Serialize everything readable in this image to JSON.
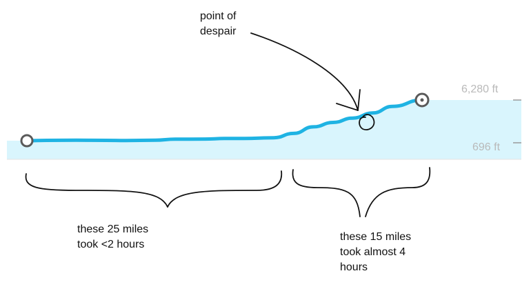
{
  "chart_data": {
    "type": "area",
    "title": "",
    "xlabel": "",
    "ylabel": "",
    "x_unit": "miles",
    "y_unit": "ft",
    "x": [
      0,
      2,
      5,
      8,
      10,
      13,
      15,
      18,
      20,
      22,
      25,
      27,
      29,
      31,
      33,
      35,
      37,
      40
    ],
    "values": [
      696,
      740,
      760,
      745,
      720,
      760,
      900,
      920,
      1000,
      1000,
      1100,
      1700,
      2600,
      3200,
      3800,
      4500,
      5400,
      6280
    ],
    "y_ticks": [
      "6,280 ft",
      "696 ft"
    ],
    "ylim": [
      696,
      6280
    ],
    "start_marker": "start",
    "end_marker": "end",
    "colors": {
      "line": "#1fb3e3",
      "fill": "#d9f5fd",
      "marker_stroke": "#5a5a5a",
      "ink": "#111111"
    }
  },
  "annotations": {
    "despair": [
      "point of",
      "despair"
    ],
    "first_segment": [
      "these 25 miles",
      "took <2 hours"
    ],
    "second_segment": [
      "these 15 miles",
      "took almost 4",
      "hours"
    ]
  }
}
